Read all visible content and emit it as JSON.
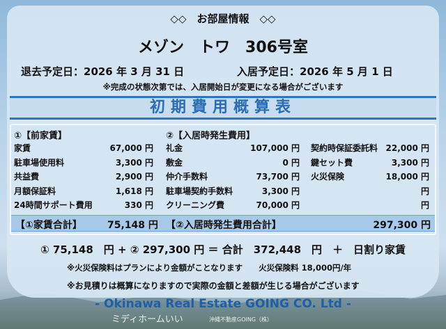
{
  "header": "◇◇　お部屋情報　◇◇",
  "title": "メゾン　トワ　306号室",
  "move_out": "退去予定日：2026 年 3 月 31 日",
  "move_in": "入居予定日：2026 年 5 月 1 日",
  "notice": "※完成の状態次第では、入居開始日が変更になる場合がございます",
  "section_title": "初期費用概算表",
  "col1": {
    "heading": "①【前家賃】",
    "items": [
      {
        "label": "家賃",
        "value": "67,000 円"
      },
      {
        "label": "駐車場使用料",
        "value": "3,300 円"
      },
      {
        "label": "共益費",
        "value": "2,900 円"
      },
      {
        "label": "月額保証料",
        "value": "1,618 円"
      },
      {
        "label": "24時間サポート費用",
        "value": "330 円"
      }
    ]
  },
  "col2": {
    "heading": "②【入居時発生費用】",
    "items": [
      {
        "label": "礼金",
        "value": "107,000 円"
      },
      {
        "label": "敷金",
        "value": "0 円"
      },
      {
        "label": "仲介手数料",
        "value": "73,700 円"
      },
      {
        "label": "駐車場契約手数料",
        "value": "3,300 円"
      },
      {
        "label": "クリーニング費",
        "value": "70,000 円"
      }
    ]
  },
  "col3": {
    "items": [
      {
        "label": "契約時保証委託料",
        "value": "22,000 円"
      },
      {
        "label": "鍵セット費",
        "value": "3,300 円"
      },
      {
        "label": "火災保険",
        "value": "18,000 円"
      },
      {
        "label": "",
        "value": "円"
      },
      {
        "label": "",
        "value": "円"
      }
    ]
  },
  "totals": {
    "rent_label": "【①家賃合計】",
    "rent_value": "75,148 円",
    "move_label": "【②入居時発生費用合計】",
    "move_value": "297,300 円"
  },
  "summary": "① 75,148　円 + ② 297,300 円 ＝ 合計　372,448　円　＋　日割り家賃",
  "note1": "※火災保険料はプランにより金額がことなります　　火災保険料 18,000円/年",
  "note2": "※お見積りは概算になりますので実際の金額と差額が生じる場合がございます",
  "footer": "- Okinawa Real Estate GOING CO. Ltd -",
  "watermark": "ミディホームいい",
  "watermark_sub": "沖縄不動産GOING（株）",
  "colors": {
    "accent": "#2a6db5",
    "total_bg": "#a9c9e8"
  }
}
